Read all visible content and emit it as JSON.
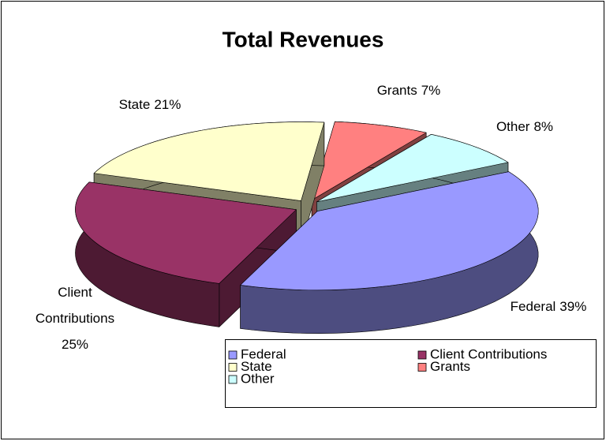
{
  "chart_data": {
    "type": "pie",
    "title": "Total Revenues",
    "categories": [
      "Federal",
      "Client Contributions",
      "State",
      "Grants",
      "Other"
    ],
    "values": [
      39,
      25,
      21,
      7,
      8
    ],
    "value_labels": [
      "39%",
      "25%",
      "21%",
      "7%",
      "8%"
    ],
    "colors": [
      "#9999ff",
      "#993366",
      "#ffffcc",
      "#ff8080",
      "#ccffff"
    ],
    "legend": "bottom-right"
  }
}
